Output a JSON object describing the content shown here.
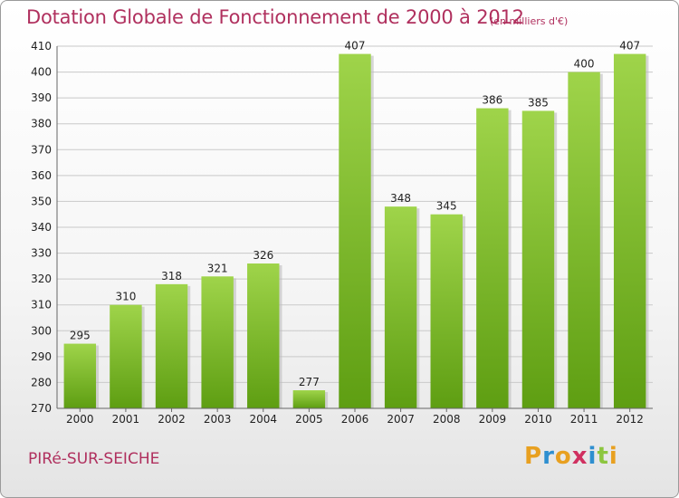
{
  "chart_data": {
    "type": "bar",
    "title": "Dotation Globale de Fonctionnement de 2000 à 2012",
    "unit_label": "(en milliers d'€)",
    "categories": [
      "2000",
      "2001",
      "2002",
      "2003",
      "2004",
      "2005",
      "2006",
      "2007",
      "2008",
      "2009",
      "2010",
      "2011",
      "2012"
    ],
    "values": [
      295,
      310,
      318,
      321,
      326,
      277,
      407,
      348,
      345,
      386,
      385,
      400,
      407
    ],
    "ylim": [
      270,
      410
    ],
    "yticks": [
      270,
      280,
      290,
      300,
      310,
      320,
      330,
      340,
      350,
      360,
      370,
      380,
      390,
      400,
      410
    ],
    "grid": true,
    "bar_color": "#8cc63f"
  },
  "footer": {
    "commune": "PIRé-SUR-SEICHE",
    "logo_text": "Proxiti"
  }
}
